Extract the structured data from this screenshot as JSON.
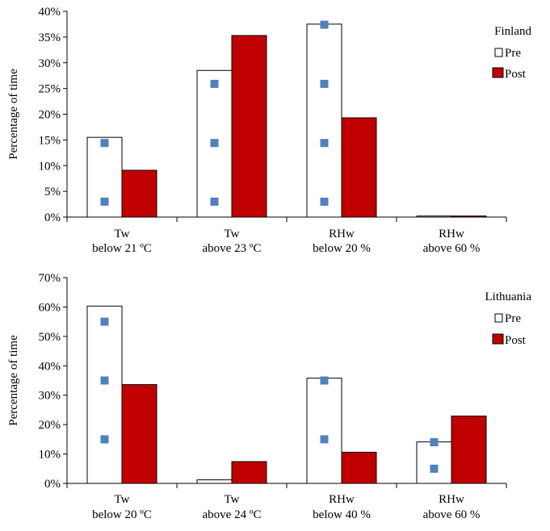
{
  "colors": {
    "pre_fill": "#ffffff",
    "pre_stroke": "#000000",
    "post_fill": "#c00000",
    "post_stroke": "#000000",
    "marker": "#4f81bd",
    "axis": "#000000"
  },
  "chart_data": [
    {
      "type": "bar",
      "title": "",
      "xlabel": "",
      "ylabel": "Percentage of time",
      "ylim": [
        0,
        40
      ],
      "yticks": [
        "0%",
        "5%",
        "10%",
        "15%",
        "20%",
        "25%",
        "30%",
        "35%",
        "40%"
      ],
      "grid": false,
      "legend_title": "Finland",
      "legend_position": "top-right",
      "categories": [
        [
          "Tw",
          "below 21 ºC"
        ],
        [
          "Tw",
          "above 23 ºC"
        ],
        [
          "RHw",
          "below 20 %"
        ],
        [
          "RHw",
          "above 60 %"
        ]
      ],
      "series": [
        {
          "name": "Pre",
          "values": [
            15.5,
            28.5,
            37.5,
            0.2
          ]
        },
        {
          "name": "Post",
          "values": [
            9.1,
            35.3,
            19.3,
            0.2
          ]
        }
      ],
      "markers": [
        {
          "category_index": 0,
          "values": [
            3,
            14.4
          ]
        },
        {
          "category_index": 1,
          "values": [
            3,
            14.4,
            25.9
          ]
        },
        {
          "category_index": 2,
          "values": [
            3,
            14.4,
            25.9,
            37.4
          ]
        }
      ]
    },
    {
      "type": "bar",
      "title": "",
      "xlabel": "",
      "ylabel": "Percentage of time",
      "ylim": [
        0,
        70
      ],
      "yticks": [
        "0%",
        "10%",
        "20%",
        "30%",
        "40%",
        "50%",
        "60%",
        "70%"
      ],
      "grid": false,
      "legend_title": "Lithuania",
      "legend_position": "top-right",
      "categories": [
        [
          "Tw",
          "below 20 ºC"
        ],
        [
          "Tw",
          "above 24 ºC"
        ],
        [
          "RHw",
          "below 40 %"
        ],
        [
          "RHw",
          "above 60 %"
        ]
      ],
      "series": [
        {
          "name": "Pre",
          "values": [
            60.3,
            1.2,
            35.8,
            14.1
          ]
        },
        {
          "name": "Post",
          "values": [
            33.6,
            7.4,
            10.6,
            22.9
          ]
        }
      ],
      "markers": [
        {
          "category_index": 0,
          "values": [
            15,
            35,
            55
          ]
        },
        {
          "category_index": 2,
          "values": [
            15,
            35
          ]
        },
        {
          "category_index": 3,
          "values": [
            5,
            14
          ]
        }
      ]
    }
  ]
}
